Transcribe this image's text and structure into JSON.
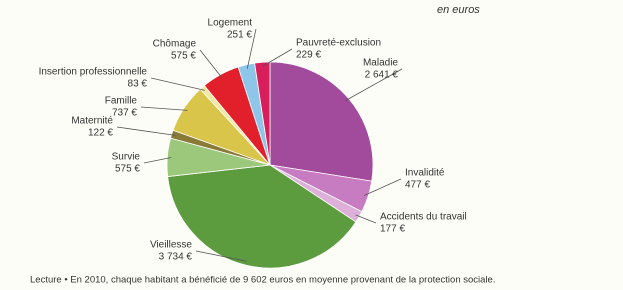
{
  "chart_data": {
    "type": "pie",
    "subtitle": "en euros",
    "categories": [
      "Maladie",
      "Invalidité",
      "Accidents du travail",
      "Vieillesse",
      "Survie",
      "Maternité",
      "Famille",
      "Insertion professionnelle",
      "Chômage",
      "Logement",
      "Pauvreté-exclusion"
    ],
    "values": [
      2641,
      477,
      177,
      3734,
      575,
      122,
      737,
      83,
      575,
      251,
      229
    ],
    "value_labels": [
      "2 641 €",
      "477 €",
      "177 €",
      "3 734 €",
      "575 €",
      "122 €",
      "737 €",
      "83 €",
      "575 €",
      "251 €",
      "229 €"
    ],
    "colors": [
      "#a24b9c",
      "#c77bc1",
      "#ddb0da",
      "#5c9b3e",
      "#9bc87b",
      "#8a7a38",
      "#d8c54a",
      "#f1e9a2",
      "#e2202b",
      "#8ec6ea",
      "#d81e5b"
    ],
    "note": "Lecture • En 2010, chaque habitant a bénéficié de 9 602 euros en moyenne provenant de la protection sociale."
  }
}
